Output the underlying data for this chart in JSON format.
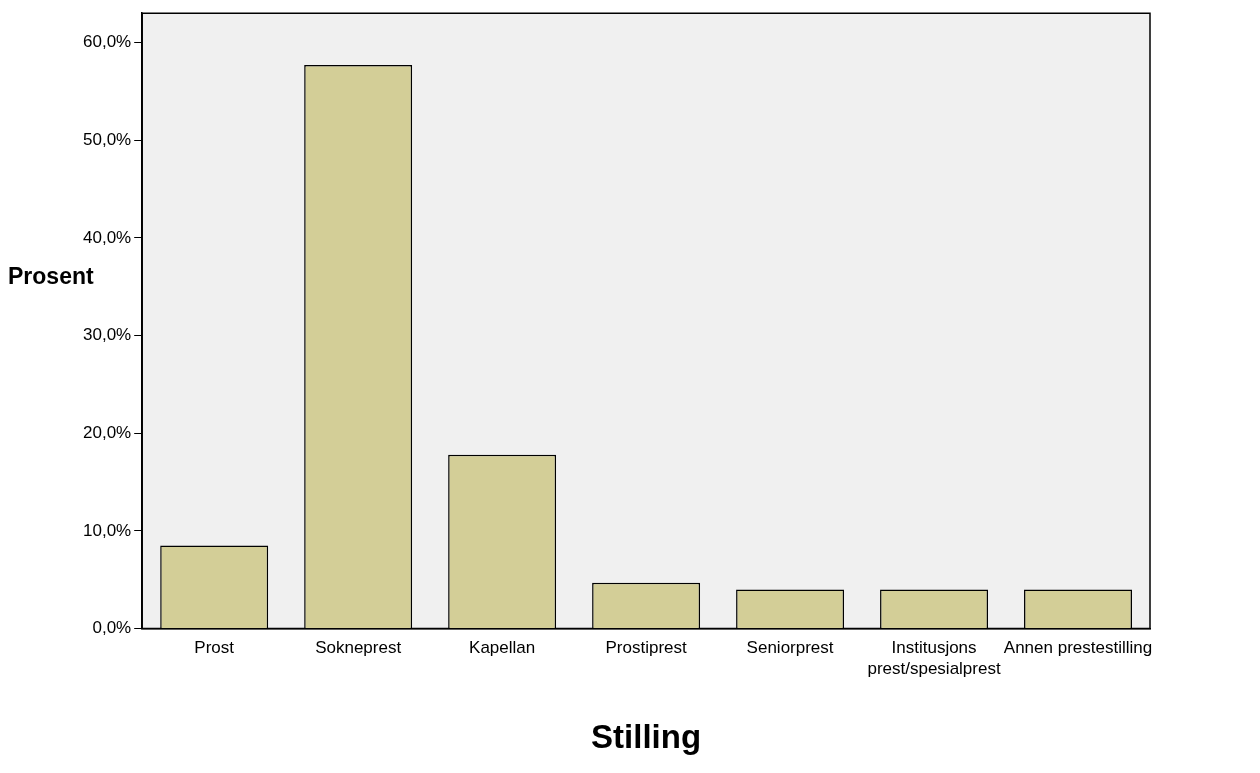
{
  "chart_data": {
    "type": "bar",
    "xlabel": "Stilling",
    "ylabel": "Prosent",
    "categories": [
      "Prost",
      "Sokneprest",
      "Kapellan",
      "Prostiprest",
      "Seniorprest",
      "Institusjons prest/spesialprest",
      "Annen prestestilling"
    ],
    "values": [
      8.5,
      57.7,
      17.8,
      4.7,
      4.0,
      4.0,
      4.0
    ],
    "color": "#d3ce97",
    "ylim": [
      0,
      63
    ],
    "yticks": [
      {
        "value": 0,
        "label": "0,0%"
      },
      {
        "value": 10,
        "label": "10,0%"
      },
      {
        "value": 20,
        "label": "20,0%"
      },
      {
        "value": 30,
        "label": "30,0%"
      },
      {
        "value": 40,
        "label": "40,0%"
      },
      {
        "value": 50,
        "label": "50,0%"
      },
      {
        "value": 60,
        "label": "60,0%"
      }
    ],
    "grid": false,
    "legend": false
  }
}
